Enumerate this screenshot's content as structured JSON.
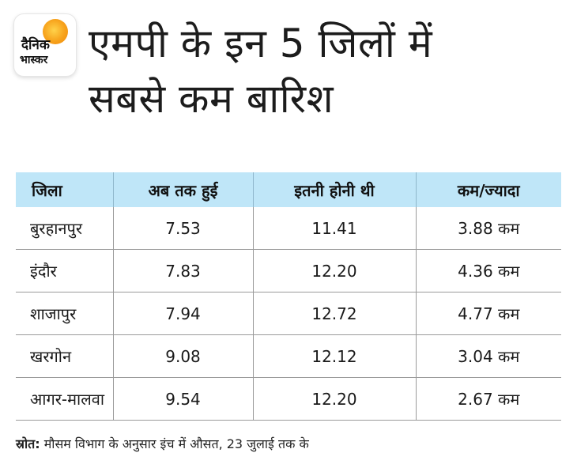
{
  "logo": {
    "line1": "दैनिक",
    "line2": "भास्कर"
  },
  "chart_data": {
    "type": "table",
    "title_lines": [
      "एमपी के इन 5 जिलों में",
      "सबसे कम बारिश"
    ],
    "columns": [
      "जिला",
      "अब तक हुई",
      "इतनी होनी थी",
      "कम/ज्यादा"
    ],
    "rows": [
      [
        "बुरहानपुर",
        "7.53",
        "11.41",
        "3.88 कम"
      ],
      [
        "इंदौर",
        "7.83",
        "12.20",
        "4.36 कम"
      ],
      [
        "शाजापुर",
        "7.94",
        "12.72",
        "4.77 कम"
      ],
      [
        "खरगोन",
        "9.08",
        "12.12",
        "3.04 कम"
      ],
      [
        "आगर-मालवा",
        "9.54",
        "12.20",
        "2.67 कम"
      ]
    ]
  },
  "source": {
    "label": "स्रोत:",
    "text": " मौसम विभाग के अनुसार इंच में औसत, 23 जुलाई तक के"
  },
  "colors": {
    "header_bg": "#bfe6f8",
    "logo_sun": "#f7a21b"
  }
}
